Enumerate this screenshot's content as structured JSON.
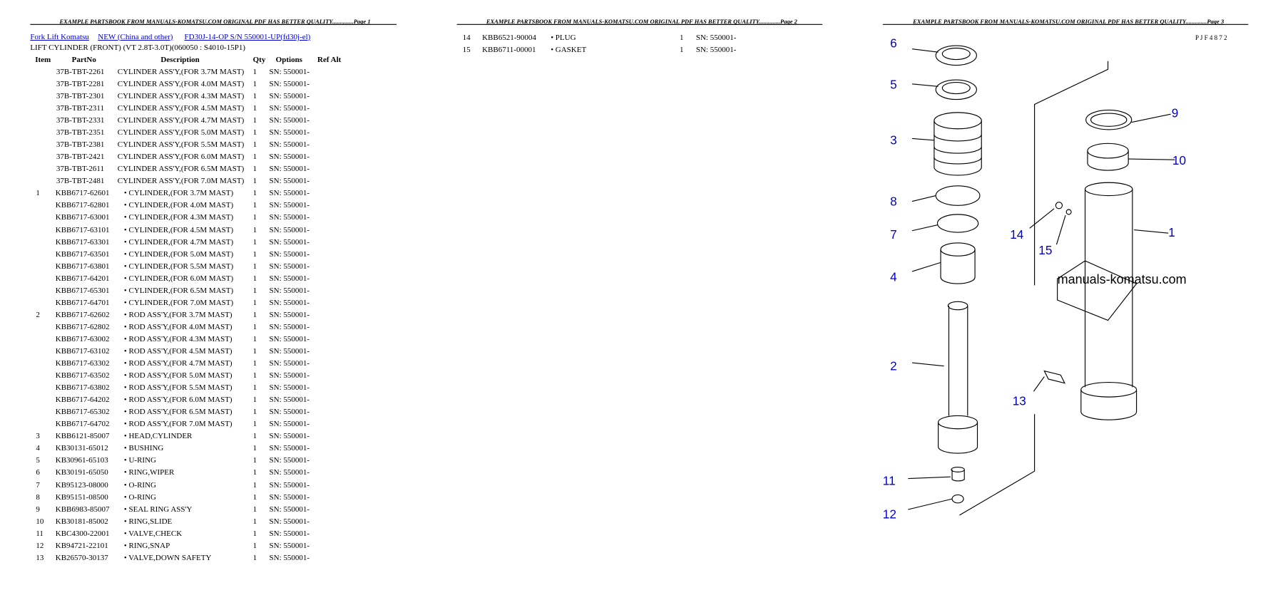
{
  "page1": {
    "header": "EXAMPLE PARTSBOOK FROM MANUALS-KOMATSU.COM ORIGINAL PDF HAS BETTER QUALITY..............Page 1",
    "breadcrumb": [
      "Fork Lift Komatsu",
      "NEW (China and other)",
      "FD30J-14-OP S/N 550001-UP(fd30j-el)"
    ],
    "title": "LIFT CYLINDER (FRONT) (VT 2.8T-3.0T)(060050 : S4010-15P1)",
    "columns": [
      "Item",
      "PartNo",
      "Description",
      "Qty",
      "Options",
      "Ref Alt"
    ],
    "rows": [
      [
        null,
        "37B-TBT-2261",
        "CYLINDER ASS'Y,(FOR 3.7M MAST)",
        1,
        "SN: 550001-"
      ],
      [
        null,
        "37B-TBT-2281",
        "CYLINDER ASS'Y,(FOR 4.0M MAST)",
        1,
        "SN: 550001-"
      ],
      [
        null,
        "37B-TBT-2301",
        "CYLINDER ASS'Y,(FOR 4.3M MAST)",
        1,
        "SN: 550001-"
      ],
      [
        null,
        "37B-TBT-2311",
        "CYLINDER ASS'Y,(FOR 4.5M MAST)",
        1,
        "SN: 550001-"
      ],
      [
        null,
        "37B-TBT-2331",
        "CYLINDER ASS'Y,(FOR 4.7M MAST)",
        1,
        "SN: 550001-"
      ],
      [
        null,
        "37B-TBT-2351",
        "CYLINDER ASS'Y,(FOR 5.0M MAST)",
        1,
        "SN: 550001-"
      ],
      [
        null,
        "37B-TBT-2381",
        "CYLINDER ASS'Y,(FOR 5.5M MAST)",
        1,
        "SN: 550001-"
      ],
      [
        null,
        "37B-TBT-2421",
        "CYLINDER ASS'Y,(FOR 6.0M MAST)",
        1,
        "SN: 550001-"
      ],
      [
        null,
        "37B-TBT-2611",
        "CYLINDER ASS'Y,(FOR 6.5M MAST)",
        1,
        "SN: 550001-"
      ],
      [
        null,
        "37B-TBT-2481",
        "CYLINDER ASS'Y,(FOR 7.0M MAST)",
        1,
        "SN: 550001-"
      ],
      [
        "1",
        "KBB6717-62601",
        "• CYLINDER,(FOR 3.7M MAST)",
        1,
        "SN: 550001-"
      ],
      [
        null,
        "KBB6717-62801",
        "• CYLINDER,(FOR 4.0M MAST)",
        1,
        "SN: 550001-"
      ],
      [
        null,
        "KBB6717-63001",
        "• CYLINDER,(FOR 4.3M MAST)",
        1,
        "SN: 550001-"
      ],
      [
        null,
        "KBB6717-63101",
        "• CYLINDER,(FOR 4.5M MAST)",
        1,
        "SN: 550001-"
      ],
      [
        null,
        "KBB6717-63301",
        "• CYLINDER,(FOR 4.7M MAST)",
        1,
        "SN: 550001-"
      ],
      [
        null,
        "KBB6717-63501",
        "• CYLINDER,(FOR 5.0M MAST)",
        1,
        "SN: 550001-"
      ],
      [
        null,
        "KBB6717-63801",
        "• CYLINDER,(FOR 5.5M MAST)",
        1,
        "SN: 550001-"
      ],
      [
        null,
        "KBB6717-64201",
        "• CYLINDER,(FOR 6.0M MAST)",
        1,
        "SN: 550001-"
      ],
      [
        null,
        "KBB6717-65301",
        "• CYLINDER,(FOR 6.5M MAST)",
        1,
        "SN: 550001-"
      ],
      [
        null,
        "KBB6717-64701",
        "• CYLINDER,(FOR 7.0M MAST)",
        1,
        "SN: 550001-"
      ],
      [
        "2",
        "KBB6717-62602",
        "• ROD ASS'Y,(FOR 3.7M MAST)",
        1,
        "SN: 550001-"
      ],
      [
        null,
        "KBB6717-62802",
        "• ROD ASS'Y,(FOR 4.0M MAST)",
        1,
        "SN: 550001-"
      ],
      [
        null,
        "KBB6717-63002",
        "• ROD ASS'Y,(FOR 4.3M MAST)",
        1,
        "SN: 550001-"
      ],
      [
        null,
        "KBB6717-63102",
        "• ROD ASS'Y,(FOR 4.5M MAST)",
        1,
        "SN: 550001-"
      ],
      [
        null,
        "KBB6717-63302",
        "• ROD ASS'Y,(FOR 4.7M MAST)",
        1,
        "SN: 550001-"
      ],
      [
        null,
        "KBB6717-63502",
        "• ROD ASS'Y,(FOR 5.0M MAST)",
        1,
        "SN: 550001-"
      ],
      [
        null,
        "KBB6717-63802",
        "• ROD ASS'Y,(FOR 5.5M MAST)",
        1,
        "SN: 550001-"
      ],
      [
        null,
        "KBB6717-64202",
        "• ROD ASS'Y,(FOR 6.0M MAST)",
        1,
        "SN: 550001-"
      ],
      [
        null,
        "KBB6717-65302",
        "• ROD ASS'Y,(FOR 6.5M MAST)",
        1,
        "SN: 550001-"
      ],
      [
        null,
        "KBB6717-64702",
        "• ROD ASS'Y,(FOR 7.0M MAST)",
        1,
        "SN: 550001-"
      ],
      [
        "3",
        "KBB6121-85007",
        "• HEAD,CYLINDER",
        1,
        "SN: 550001-"
      ],
      [
        "4",
        "KB30131-65012",
        "• BUSHING",
        1,
        "SN: 550001-"
      ],
      [
        "5",
        "KB30961-65103",
        "• U-RING",
        1,
        "SN: 550001-"
      ],
      [
        "6",
        "KB30191-65050",
        "• RING,WIPER",
        1,
        "SN: 550001-"
      ],
      [
        "7",
        "KB95123-08000",
        "• O-RING",
        1,
        "SN: 550001-"
      ],
      [
        "8",
        "KB95151-08500",
        "• O-RING",
        1,
        "SN: 550001-"
      ],
      [
        "9",
        "KBB6983-85007",
        "• SEAL RING ASS'Y",
        1,
        "SN: 550001-"
      ],
      [
        "10",
        "KB30181-85002",
        "• RING,SLIDE",
        1,
        "SN: 550001-"
      ],
      [
        "11",
        "KBC4300-22001",
        "• VALVE,CHECK",
        1,
        "SN: 550001-"
      ],
      [
        "12",
        "KB94721-22101",
        "• RING,SNAP",
        1,
        "SN: 550001-"
      ],
      [
        "13",
        "KB26570-30137",
        "• VALVE,DOWN SAFETY",
        1,
        "SN: 550001-"
      ]
    ]
  },
  "page2": {
    "header": "EXAMPLE PARTSBOOK FROM MANUALS-KOMATSU.COM ORIGINAL PDF HAS BETTER QUALITY..............Page 2",
    "rows": [
      [
        "14",
        "KBB6521-90004",
        "• PLUG",
        1,
        "SN: 550001-"
      ],
      [
        "15",
        "KBB6711-00001",
        "• GASKET",
        1,
        "SN: 550001-"
      ]
    ]
  },
  "page3": {
    "header": "EXAMPLE PARTSBOOK FROM MANUALS-KOMATSU.COM ORIGINAL PDF HAS BETTER QUALITY..............Page 3",
    "code": "P J F 4 8 7 2",
    "watermark": "manuals-komatsu.com",
    "callouts": [
      "6",
      "5",
      "3",
      "8",
      "7",
      "4",
      "2",
      "11",
      "12",
      "9",
      "10",
      "1",
      "14",
      "15",
      "13"
    ]
  }
}
